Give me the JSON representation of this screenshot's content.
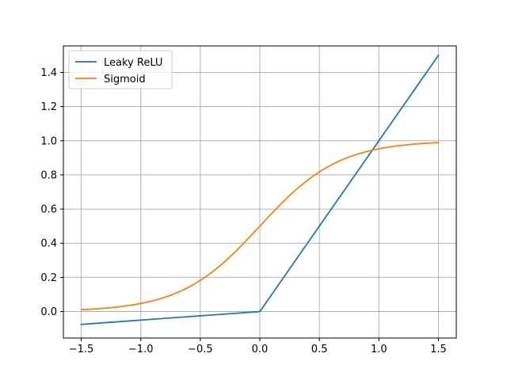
{
  "chart_data": {
    "type": "line",
    "title": "",
    "xlabel": "",
    "ylabel": "",
    "xlim": [
      -1.65,
      1.65
    ],
    "ylim": [
      -0.155,
      1.555
    ],
    "xticks": [
      -1.5,
      -1.0,
      -0.5,
      0.0,
      0.5,
      1.0,
      1.5
    ],
    "xtick_labels": [
      "−1.5",
      "−1.0",
      "−0.5",
      "0.0",
      "0.5",
      "1.0",
      "1.5"
    ],
    "yticks": [
      0.0,
      0.2,
      0.4,
      0.6,
      0.8,
      1.0,
      1.2,
      1.4
    ],
    "ytick_labels": [
      "0.0",
      "0.2",
      "0.4",
      "0.6",
      "0.8",
      "1.0",
      "1.2",
      "1.4"
    ],
    "grid": true,
    "legend": "upper-left",
    "x": [
      -1.5,
      -1.25,
      -1.0,
      -0.75,
      -0.5,
      -0.25,
      0.0,
      0.25,
      0.5,
      0.75,
      1.0,
      1.25,
      1.5
    ],
    "series": [
      {
        "name": "Leaky ReLU",
        "color": "#1f77b4",
        "values": [
          -0.075,
          -0.0625,
          -0.05,
          -0.0375,
          -0.025,
          -0.0125,
          0.0,
          0.25,
          0.5,
          0.75,
          1.0,
          1.25,
          1.5
        ]
      },
      {
        "name": "Sigmoid",
        "color": "#ff7f0e",
        "values": [
          0.011,
          0.023,
          0.047,
          0.095,
          0.182,
          0.321,
          0.5,
          0.679,
          0.818,
          0.905,
          0.953,
          0.977,
          0.989
        ]
      }
    ]
  }
}
